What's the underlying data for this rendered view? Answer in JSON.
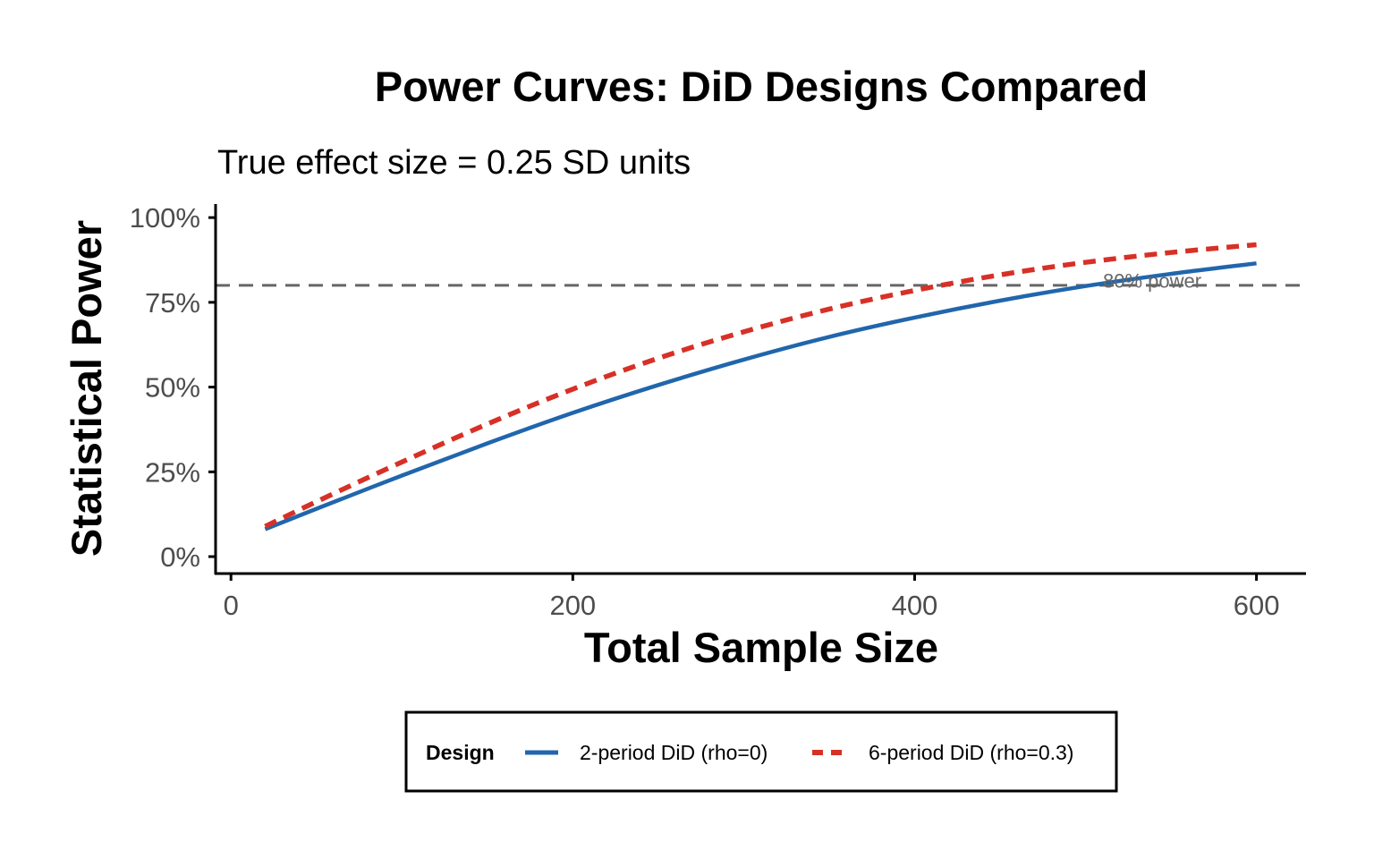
{
  "chart_data": {
    "type": "line",
    "title": "Power Curves: DiD Designs Compared",
    "subtitle": "True effect size = 0.25 SD units",
    "xlabel": "Total Sample Size",
    "ylabel": "Statistical Power",
    "xlim": [
      -9,
      629
    ],
    "ylim": [
      -0.05,
      1.04
    ],
    "x_ticks": [
      0,
      200,
      400,
      600
    ],
    "x_tick_labels": [
      "0",
      "200",
      "400",
      "600"
    ],
    "y_ticks": [
      0,
      0.25,
      0.5,
      0.75,
      1.0
    ],
    "y_tick_labels": [
      "0%",
      "25%",
      "50%",
      "75%",
      "100%"
    ],
    "grid": false,
    "x": [
      20,
      50,
      100,
      150,
      200,
      250,
      300,
      350,
      400,
      450,
      500,
      550,
      600
    ],
    "series": [
      {
        "name": "2-period DiD (rho=0)",
        "color": "#2166ac",
        "style": "solid",
        "values": [
          0.081,
          0.141,
          0.239,
          0.334,
          0.424,
          0.506,
          0.581,
          0.648,
          0.705,
          0.755,
          0.798,
          0.834,
          0.865
        ]
      },
      {
        "name": "6-period DiD (rho=0.3)",
        "color": "#d73027",
        "style": "dashed",
        "values": [
          0.089,
          0.162,
          0.279,
          0.391,
          0.494,
          0.585,
          0.663,
          0.73,
          0.785,
          0.831,
          0.868,
          0.897,
          0.92
        ]
      }
    ],
    "reference_line": {
      "y": 0.8,
      "color": "#666666",
      "style": "dashed"
    },
    "annotation": {
      "text": "80% power",
      "x": 539,
      "y": 0.815
    },
    "legend": {
      "title": "Design",
      "position": "bottom"
    }
  }
}
